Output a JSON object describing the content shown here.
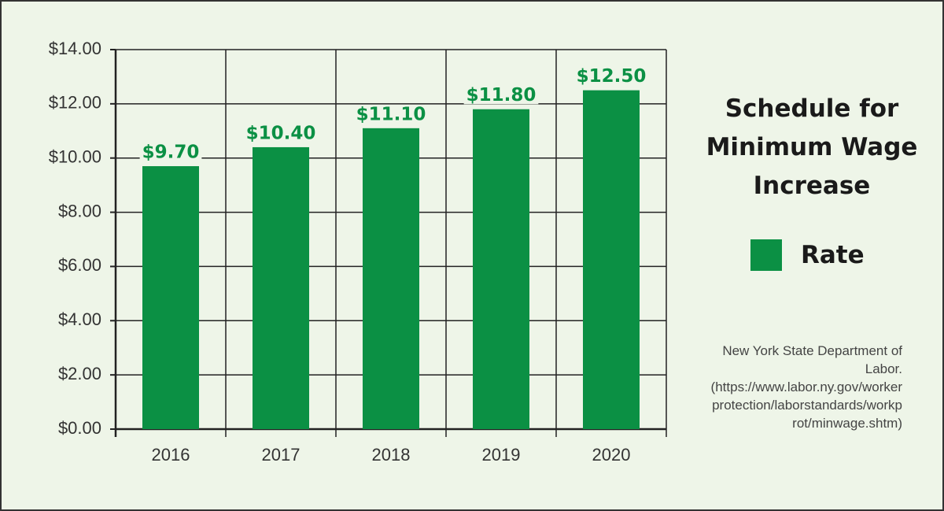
{
  "chart_data": {
    "type": "bar",
    "title": "Schedule for Minimum Wage Increase",
    "source": "New York State Department of Labor. (https://www.labor.ny.gov/workerprotection/laborstandards/workprot/minwage.shtm)",
    "categories": [
      "2016",
      "2017",
      "2018",
      "2019",
      "2020"
    ],
    "series": [
      {
        "name": "Rate",
        "color": "#0b9044",
        "values": [
          9.7,
          10.4,
          11.1,
          11.8,
          12.5
        ],
        "value_labels": [
          "$9.70",
          "$10.40",
          "$11.10",
          "$11.80",
          "$12.50"
        ]
      }
    ],
    "ylim": [
      0,
      14
    ],
    "yticks": [
      {
        "value": 0,
        "label": "$0.00"
      },
      {
        "value": 2,
        "label": "$2.00"
      },
      {
        "value": 4,
        "label": "$4.00"
      },
      {
        "value": 6,
        "label": "$6.00"
      },
      {
        "value": 8,
        "label": "$8.00"
      },
      {
        "value": 10,
        "label": "$10.00"
      },
      {
        "value": 12,
        "label": "$12.00"
      },
      {
        "value": 14,
        "label": "$14.00"
      }
    ],
    "grid": true
  }
}
